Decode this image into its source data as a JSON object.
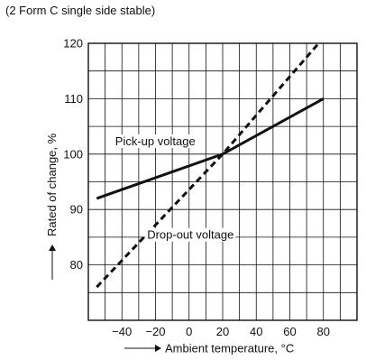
{
  "note": "(2 Form C single side stable)",
  "chart_data": {
    "type": "line",
    "xlabel": "Ambient temperature, °C",
    "ylabel": "Rated of change, %",
    "xlim": [
      -60,
      100
    ],
    "ylim": [
      70,
      120
    ],
    "x_ticks": [
      -40,
      -20,
      0,
      20,
      40,
      60,
      80
    ],
    "y_ticks": [
      80,
      90,
      100,
      110,
      120
    ],
    "grid": true,
    "series": [
      {
        "name": "Pick-up voltage",
        "style": "solid",
        "x": [
          -55,
          20,
          80
        ],
        "y": [
          92,
          100,
          110
        ]
      },
      {
        "name": "Drop-out voltage",
        "style": "dashed",
        "x": [
          -55,
          20,
          80
        ],
        "y": [
          76,
          100,
          121
        ]
      }
    ],
    "annotations": [
      "Pick-up voltage",
      "Drop-out voltage"
    ]
  }
}
